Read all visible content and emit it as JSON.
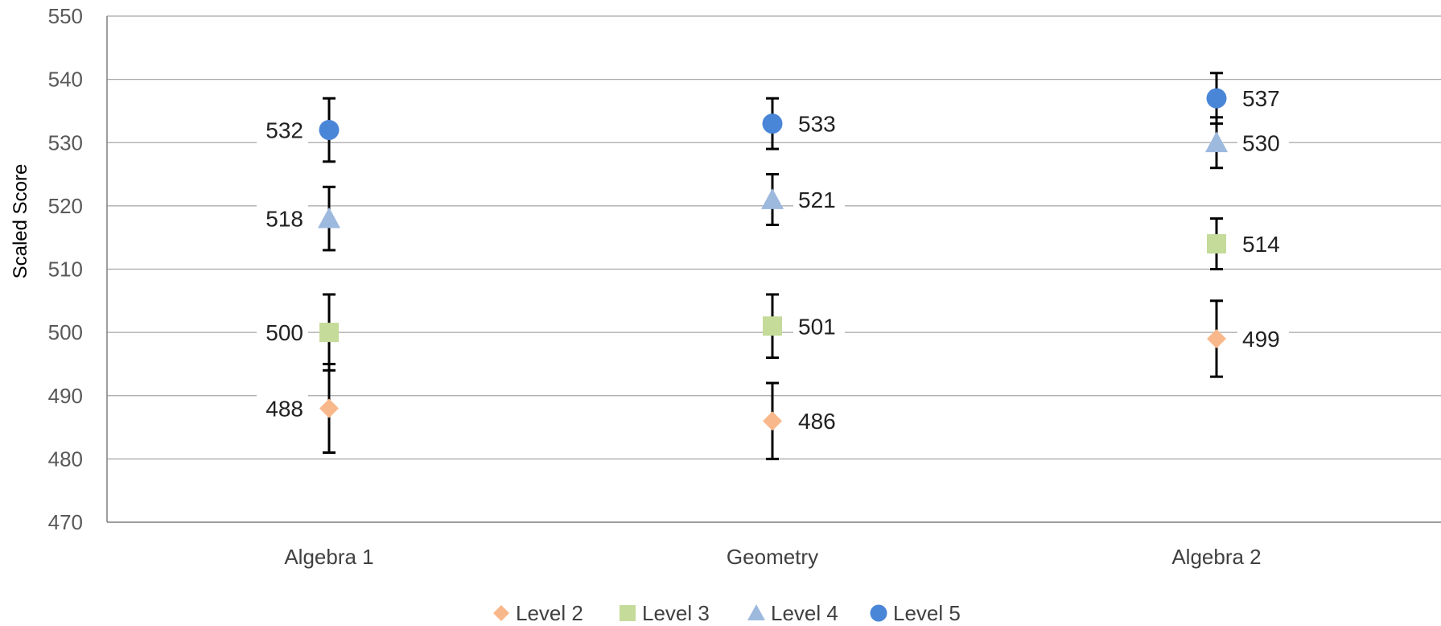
{
  "chart_data": {
    "type": "scatter",
    "title": "",
    "xlabel": "",
    "ylabel": "Scaled Score",
    "ylim": [
      470,
      550
    ],
    "ytick_step": 10,
    "grid": true,
    "legend_position": "bottom",
    "categories": [
      "Algebra 1",
      "Geometry",
      "Algebra 2"
    ],
    "series": [
      {
        "name": "Level 2",
        "marker": "diamond",
        "color": "#F8B88B",
        "values": [
          488,
          486,
          499
        ],
        "err_low": [
          481,
          480,
          493
        ],
        "err_high": [
          495,
          492,
          505
        ]
      },
      {
        "name": "Level 3",
        "marker": "square",
        "color": "#C5DB9A",
        "values": [
          500,
          501,
          514
        ],
        "err_low": [
          494,
          496,
          510
        ],
        "err_high": [
          506,
          506,
          518
        ]
      },
      {
        "name": "Level 4",
        "marker": "triangle",
        "color": "#9DB9DE",
        "values": [
          518,
          521,
          530
        ],
        "err_low": [
          513,
          517,
          526
        ],
        "err_high": [
          523,
          525,
          534
        ]
      },
      {
        "name": "Level 5",
        "marker": "circle",
        "color": "#4A86D8",
        "values": [
          532,
          533,
          537
        ],
        "err_low": [
          527,
          529,
          533
        ],
        "err_high": [
          537,
          537,
          541
        ]
      }
    ],
    "data_labels": [
      [
        "488",
        "486",
        "499"
      ],
      [
        "500",
        "501",
        "514"
      ],
      [
        "518",
        "521",
        "530"
      ],
      [
        "532",
        "533",
        "537"
      ]
    ]
  }
}
